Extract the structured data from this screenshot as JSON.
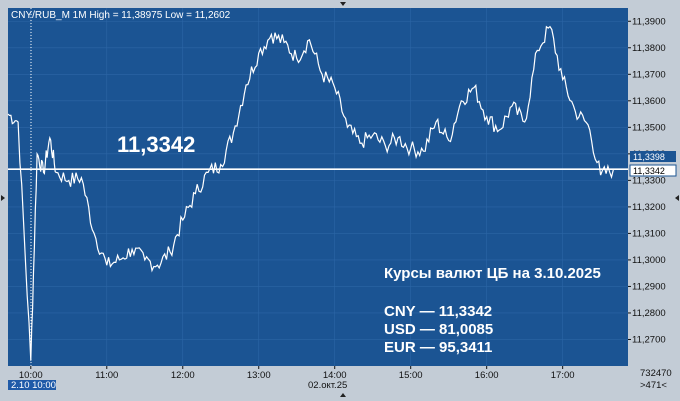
{
  "chart_data": {
    "type": "line",
    "title": "CNY/RUB_M 1M High = 11,38975 Low = 11,2602",
    "ylim": [
      11.26,
      11.395
    ],
    "y_ticks": [
      "11,3900",
      "11,3800",
      "11,3700",
      "11,3600",
      "11,3500",
      "11,3400",
      "11,3300",
      "11,3200",
      "11,3100",
      "11,3000",
      "11,2900",
      "11,2800",
      "11,2700"
    ],
    "x_ticks": [
      "10:00",
      "11:00",
      "12:00",
      "13:00",
      "14:00",
      "15:00",
      "16:00",
      "17:00"
    ],
    "x_date_label": "02.окт.25",
    "cursor_label": "2.10 10:00",
    "current_value_label": "11,3342",
    "badge_upper": "11,3398",
    "badge_lower": "11,3342",
    "volume_label": "732470",
    "counter_label": ">471<",
    "x": [
      "09:42",
      "09:50",
      "10:00",
      "10:05",
      "10:10",
      "10:15",
      "10:20",
      "10:30",
      "10:40",
      "10:50",
      "11:00",
      "11:10",
      "11:20",
      "11:30",
      "11:40",
      "11:50",
      "12:00",
      "12:10",
      "12:20",
      "12:30",
      "12:40",
      "12:50",
      "13:00",
      "13:10",
      "13:20",
      "13:30",
      "13:40",
      "13:50",
      "14:00",
      "14:10",
      "14:20",
      "14:30",
      "14:40",
      "14:50",
      "15:00",
      "15:10",
      "15:20",
      "15:30",
      "15:40",
      "15:50",
      "16:00",
      "16:10",
      "16:20",
      "16:30",
      "16:40",
      "16:50",
      "17:00",
      "17:10",
      "17:20",
      "17:30",
      "17:40"
    ],
    "values": [
      11.355,
      11.352,
      11.262,
      11.34,
      11.333,
      11.346,
      11.333,
      11.33,
      11.331,
      11.31,
      11.298,
      11.3,
      11.304,
      11.3,
      11.298,
      11.303,
      11.315,
      11.325,
      11.333,
      11.336,
      11.348,
      11.366,
      11.378,
      11.385,
      11.382,
      11.376,
      11.383,
      11.37,
      11.365,
      11.35,
      11.344,
      11.347,
      11.343,
      11.346,
      11.342,
      11.341,
      11.352,
      11.345,
      11.36,
      11.365,
      11.354,
      11.349,
      11.358,
      11.352,
      11.379,
      11.388,
      11.368,
      11.356,
      11.351,
      11.332,
      11.334
    ]
  },
  "annotation": {
    "heading": "Курсы валют ЦБ на 3.10.2025",
    "rates": [
      {
        "text": "CNY — 11,3342"
      },
      {
        "text": "USD — 81,0085"
      },
      {
        "text": "EUR — 95,3411"
      }
    ]
  },
  "colors": {
    "plot_bg": "#1b5493",
    "line": "#ffffff",
    "axis_bg": "#c3ccd6",
    "cursor_bg": "#1f5aa8"
  }
}
